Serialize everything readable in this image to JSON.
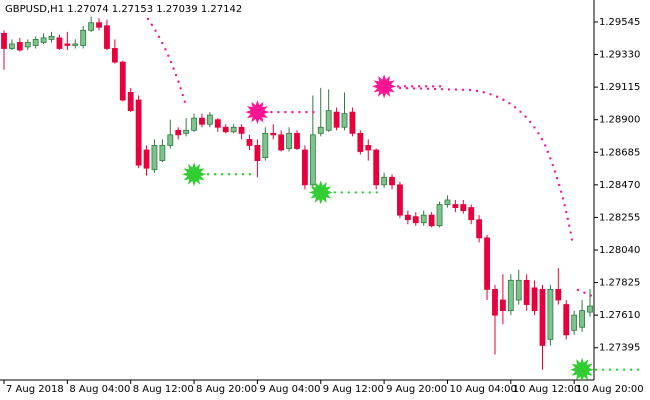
{
  "chart_data": {
    "type": "candlestick",
    "title": "GBPUSD,H1  1.27074 1.27153 1.27039 1.27142",
    "categories": [
      "7 Aug 2018",
      null,
      null,
      null,
      null,
      null,
      null,
      null,
      "8 Aug 04:00",
      null,
      null,
      null,
      null,
      null,
      null,
      null,
      "8 Aug 12:00",
      null,
      null,
      null,
      null,
      null,
      null,
      null,
      "8 Aug 20:00",
      null,
      null,
      null,
      null,
      null,
      null,
      null,
      "9 Aug 04:00",
      null,
      null,
      null,
      null,
      null,
      null,
      null,
      "9 Aug 12:00",
      null,
      null,
      null,
      null,
      null,
      null,
      null,
      "9 Aug 20:00",
      null,
      null,
      null,
      null,
      null,
      null,
      null,
      "10 Aug 04:00",
      null,
      null,
      null,
      null,
      null,
      null,
      null,
      "10 Aug 12:00",
      null,
      null,
      null,
      null,
      null,
      null,
      null,
      "10 Aug 20:00",
      null,
      null
    ],
    "open": [
      1.2947,
      1.2937,
      1.2941,
      1.2938,
      1.2939,
      1.2941,
      1.2943,
      1.2944,
      1.294,
      1.2939,
      1.2939,
      1.2949,
      1.2954,
      1.2952,
      1.2937,
      1.2928,
      1.2908,
      1.2903,
      1.287,
      1.2857,
      1.2863,
      1.2873,
      1.2883,
      1.2881,
      1.2883,
      1.2891,
      1.2887,
      1.289,
      1.2885,
      1.2882,
      1.2885,
      1.2877,
      1.2873,
      1.2865,
      1.2881,
      1.288,
      1.2871,
      1.2881,
      1.287,
      1.2847,
      1.2881,
      1.2883,
      1.2895,
      1.2885,
      1.2895,
      1.2881,
      1.2873,
      1.287,
      1.2847,
      1.2852,
      1.2847,
      1.2827,
      1.2826,
      1.2822,
      1.2827,
      1.282,
      1.2834,
      1.2834,
      1.2834,
      1.2832,
      1.2824,
      1.2812,
      1.2778,
      1.2771,
      1.2764,
      1.2771,
      1.2784,
      1.2779,
      1.2778,
      1.2745,
      1.2778,
      1.2768,
      1.2751,
      1.2753,
      1.2763
    ],
    "high": [
      1.2949,
      1.2943,
      1.2944,
      1.2943,
      1.2945,
      1.2947,
      1.2948,
      1.2946,
      1.2948,
      1.2943,
      1.2952,
      1.2958,
      1.2957,
      1.2956,
      1.2943,
      1.2929,
      1.2911,
      1.2906,
      1.2873,
      1.2877,
      1.2877,
      1.289,
      1.2885,
      1.2891,
      1.2894,
      1.2894,
      1.2895,
      1.2891,
      1.2887,
      1.2887,
      1.2887,
      1.288,
      1.2877,
      1.2885,
      1.2887,
      1.2883,
      1.2885,
      1.2883,
      1.2873,
      1.2906,
      1.2911,
      1.291,
      1.2898,
      1.2908,
      1.2898,
      1.2883,
      1.2877,
      1.2871,
      1.2855,
      1.2854,
      1.2849,
      1.283,
      1.2829,
      1.283,
      1.2829,
      1.2836,
      1.284,
      1.2837,
      1.2837,
      1.2834,
      1.2827,
      1.2814,
      1.2781,
      1.2788,
      1.2788,
      1.2791,
      1.2788,
      1.2784,
      1.2781,
      1.2781,
      1.2792,
      1.2771,
      1.2764,
      1.2771,
      1.2778
    ],
    "low": [
      1.2923,
      1.2936,
      1.2935,
      1.2936,
      1.2937,
      1.294,
      1.2941,
      1.2936,
      1.2936,
      1.2937,
      1.2937,
      1.2948,
      1.2949,
      1.2936,
      1.2927,
      1.2902,
      1.2895,
      1.2858,
      1.2853,
      1.2855,
      1.2862,
      1.2871,
      1.2877,
      1.2879,
      1.2882,
      1.2885,
      1.2885,
      1.2882,
      1.2881,
      1.2881,
      1.2877,
      1.287,
      1.2852,
      1.2863,
      1.2877,
      1.2869,
      1.2869,
      1.287,
      1.2844,
      1.2845,
      1.2879,
      1.2882,
      1.2883,
      1.2883,
      1.2879,
      1.2867,
      1.2863,
      1.2844,
      1.2845,
      1.2844,
      1.2825,
      1.2821,
      1.282,
      1.282,
      1.2819,
      1.2819,
      1.2832,
      1.2829,
      1.2828,
      1.2821,
      1.2809,
      1.2771,
      1.2735,
      1.2755,
      1.2761,
      1.2768,
      1.2764,
      1.2761,
      1.2725,
      1.2741,
      1.2768,
      1.2745,
      1.2748,
      1.275,
      1.276
    ],
    "close": [
      1.2937,
      1.294,
      1.2936,
      1.2941,
      1.2943,
      1.2944,
      1.2945,
      1.2937,
      1.2939,
      1.294,
      1.2949,
      1.2954,
      1.2951,
      1.2937,
      1.2928,
      1.2903,
      1.2896,
      1.286,
      1.2858,
      1.2873,
      1.2873,
      1.288,
      1.288,
      1.2883,
      1.2891,
      1.2887,
      1.2893,
      1.2885,
      1.2882,
      1.2885,
      1.2881,
      1.2873,
      1.2863,
      1.2881,
      1.288,
      1.287,
      1.2881,
      1.2871,
      1.2847,
      1.288,
      1.2885,
      1.2896,
      1.2885,
      1.2894,
      1.2881,
      1.2869,
      1.287,
      1.2847,
      1.2852,
      1.2847,
      1.2827,
      1.2824,
      1.2822,
      1.2827,
      1.282,
      1.2834,
      1.2837,
      1.2832,
      1.283,
      1.2824,
      1.2812,
      1.2778,
      1.2761,
      1.2764,
      1.2784,
      1.2784,
      1.2768,
      1.2764,
      1.2741,
      1.2778,
      1.2771,
      1.2748,
      1.2761,
      1.2764,
      1.2767
    ],
    "buy_signals": [
      null,
      null,
      null,
      null,
      null,
      null,
      null,
      null,
      null,
      null,
      null,
      null,
      null,
      null,
      null,
      null,
      null,
      null,
      null,
      null,
      null,
      null,
      null,
      null,
      1.2854,
      null,
      null,
      null,
      null,
      null,
      null,
      null,
      null,
      null,
      null,
      null,
      null,
      null,
      null,
      null,
      1.2842,
      null,
      null,
      null,
      null,
      null,
      null,
      null,
      null,
      null,
      null,
      null,
      null,
      null,
      null,
      null,
      null,
      null,
      null,
      null,
      null,
      null,
      null,
      null,
      null,
      null,
      null,
      null,
      null,
      null,
      null,
      null,
      null,
      1.2725,
      null
    ],
    "sell_signals": [
      null,
      null,
      null,
      null,
      null,
      null,
      null,
      null,
      null,
      null,
      null,
      null,
      null,
      null,
      null,
      null,
      null,
      null,
      null,
      null,
      null,
      null,
      null,
      null,
      null,
      null,
      null,
      null,
      null,
      null,
      null,
      null,
      1.2895,
      null,
      null,
      null,
      null,
      null,
      null,
      null,
      null,
      null,
      null,
      null,
      null,
      null,
      null,
      null,
      1.2912,
      null,
      null,
      null,
      null,
      null,
      null,
      null,
      null,
      null,
      null,
      null,
      null,
      null,
      null,
      null,
      null,
      null,
      null,
      null,
      null,
      null,
      null,
      null,
      null,
      null,
      null
    ],
    "up_color": "#7cc48c",
    "down_color": "#e8003c",
    "buy_color": "#32cd32",
    "sell_color": "#ff1493",
    "ylim": [
      1.27182,
      1.2969
    ],
    "yticks": [
      1.29545,
      {
        "value": 1.2933,
        "label": "1.29330"
      },
      1.29115,
      {
        "value": 1.289,
        "label": "1.28900"
      },
      1.28685,
      {
        "value": 1.2847,
        "label": "1.28470"
      },
      1.28255,
      {
        "value": 1.2804,
        "label": "1.28040"
      },
      1.27825,
      {
        "value": 1.2761,
        "label": "1.27610"
      },
      1.27395
    ]
  }
}
